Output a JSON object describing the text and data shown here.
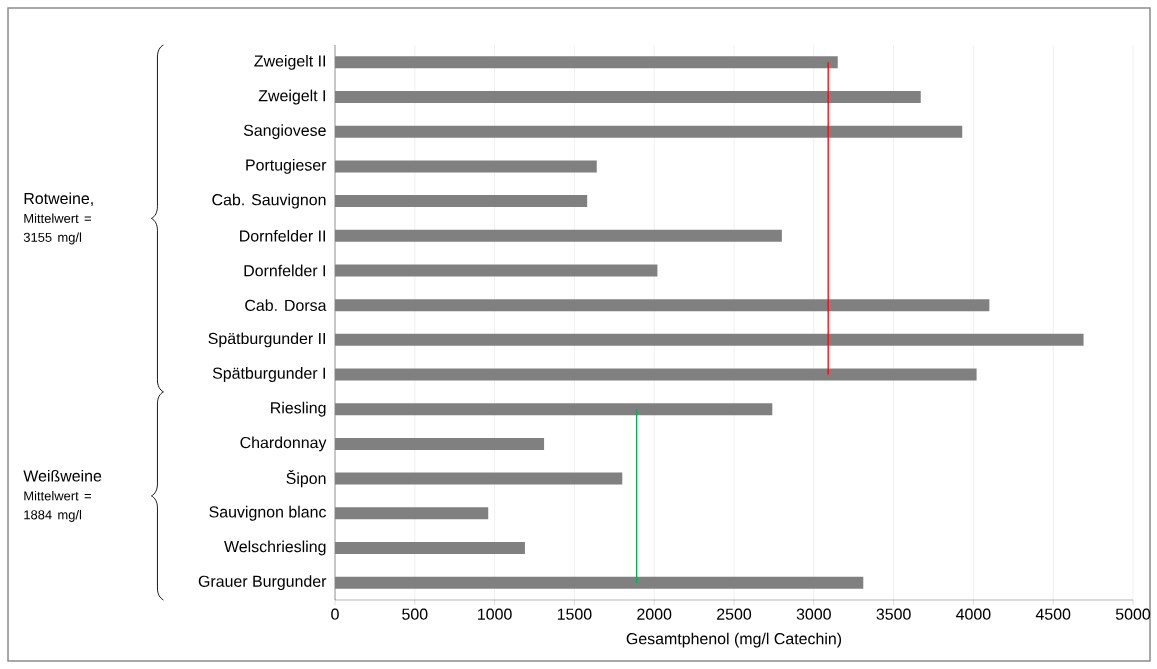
{
  "chart_data": {
    "type": "bar",
    "orientation": "horizontal",
    "categories": [
      "Zweigelt II",
      "Zweigelt I",
      "Sangiovese",
      "Portugieser",
      "Cab. Sauvignon",
      "Dornfelder II",
      "Dornfelder I",
      "Cab. Dorsa",
      "Spätburgunder II",
      "Spätburgunder I",
      "Riesling",
      "Chardonnay",
      "Šipon",
      "Sauvignon blanc",
      "Welschriesling",
      "Grauer Burgunder"
    ],
    "series": [
      {
        "type": "bar",
        "color": "#808080",
        "values": [
          3150,
          3670,
          3930,
          1640,
          1580,
          2800,
          2020,
          4100,
          4690,
          4020,
          2740,
          1310,
          1800,
          960,
          1190,
          3310
        ]
      },
      {
        "type": "line",
        "color": "#ff0000",
        "values": [
          3090,
          3090,
          3090,
          3090,
          3090,
          3090,
          3090,
          3090,
          3090,
          3090,
          null,
          null,
          null,
          null,
          null,
          null
        ]
      },
      {
        "type": "line",
        "color": "#00b050",
        "values": [
          null,
          null,
          null,
          null,
          null,
          null,
          null,
          null,
          null,
          null,
          1890,
          1890,
          1890,
          1890,
          1890,
          1890
        ]
      }
    ],
    "xlabel": "Gesamtphenol (mg/l Catechin)",
    "xlim": [
      0,
      5000
    ],
    "xticks": [
      0,
      500,
      1000,
      1500,
      2000,
      2500,
      3000,
      3500,
      4000,
      4500,
      5000
    ],
    "grid": "x",
    "annotations": [
      "Rotweine,",
      "Mittelwert = 3155 mg/l",
      "Weißweine",
      "Mittelwert = 1884 mg/l"
    ]
  }
}
